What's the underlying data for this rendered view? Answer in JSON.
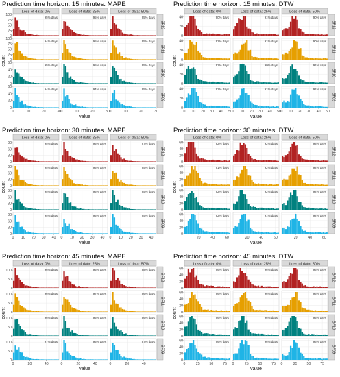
{
  "colors": {
    "SF12": "#B22222",
    "SF11": "#E69F00",
    "SF10": "#00817F",
    "SF09": "#1FB4E6",
    "strip_bg": "#d9d9d9",
    "panel_bg": "#ffffff",
    "grid": "#e6e6e6"
  },
  "row_labels": [
    "SF12",
    "SF11",
    "SF10",
    "SF09"
  ],
  "col_labels": [
    "Loss of data: 0%",
    "Loss of data: 25%",
    "Loss of data: 50%"
  ],
  "axis_titles": {
    "y": "count",
    "x": "value"
  },
  "chart_data": [
    {
      "type": "bar",
      "title": "Prediction time horizon: 15 minutes. MAPE",
      "xlim": [
        0,
        30
      ],
      "xticks": [
        0,
        10,
        20,
        30
      ],
      "ylim_per_row": [
        [
          0,
          100
        ],
        [
          0,
          100
        ],
        [
          0,
          60
        ],
        [
          0,
          60
        ]
      ],
      "yticks_per_row": [
        [
          0,
          25,
          50,
          75,
          100
        ],
        [
          0,
          25,
          50,
          75,
          100
        ],
        [
          0,
          20,
          40,
          60
        ],
        [
          0,
          20,
          40,
          60
        ]
      ],
      "shape": "decay",
      "annotations": [
        [
          "95% days",
          "95% days",
          "95% days"
        ],
        [
          "94% days",
          "95% days",
          "95% days"
        ],
        [
          "95% days",
          "95% days",
          "95% days"
        ],
        [
          "94% days",
          "94% days",
          "95% days"
        ]
      ]
    },
    {
      "type": "bar",
      "title": "Prediction time horizon: 15 minutes. DTW",
      "xlim": [
        0,
        50
      ],
      "xticks": [
        0,
        10,
        20,
        30,
        40,
        50
      ],
      "ylim_per_row": [
        [
          0,
          45
        ],
        [
          0,
          45
        ],
        [
          0,
          45
        ],
        [
          0,
          45
        ]
      ],
      "yticks_per_row": [
        [
          0,
          20,
          40
        ],
        [
          0,
          20,
          40
        ],
        [
          0,
          20,
          40
        ],
        [
          0,
          20,
          40
        ]
      ],
      "shape": "peak",
      "annotations": [
        [
          "90% days",
          "91% days",
          "90% days"
        ],
        [
          "92% days",
          "91% days",
          "90% days"
        ],
        [
          "92% days",
          "90% days",
          "91% days"
        ],
        [
          "92% days",
          "91% days",
          "91% days"
        ]
      ]
    },
    {
      "type": "bar",
      "title": "Prediction time horizon: 30 minutes. MAPE",
      "xlim": [
        0,
        45
      ],
      "xticks": [
        0,
        10,
        20,
        30,
        40
      ],
      "ylim_per_row": [
        [
          0,
          100
        ],
        [
          0,
          100
        ],
        [
          0,
          100
        ],
        [
          0,
          100
        ]
      ],
      "yticks_per_row": [
        [
          0,
          30,
          60,
          90
        ],
        [
          0,
          30,
          60,
          90
        ],
        [
          0,
          30,
          60,
          90
        ],
        [
          0,
          30,
          60,
          90
        ]
      ],
      "shape": "decay",
      "annotations": [
        [
          "95% days",
          "95% days",
          "97% days"
        ],
        [
          "95% days",
          "95% days",
          "95% days"
        ],
        [
          "95% days",
          "95% days",
          "95% days"
        ],
        [
          "95% days",
          "95% days",
          "95% days"
        ]
      ]
    },
    {
      "type": "bar",
      "title": "Prediction time horizon: 30 minutes. DTW",
      "xlim": [
        0,
        65
      ],
      "xticks": [
        20,
        40,
        60
      ],
      "ylim_per_row": [
        [
          0,
          65
        ],
        [
          0,
          65
        ],
        [
          0,
          65
        ],
        [
          0,
          65
        ]
      ],
      "yticks_per_row": [
        [
          0,
          20,
          40,
          60
        ],
        [
          0,
          20,
          40,
          60
        ],
        [
          0,
          20,
          40,
          60
        ],
        [
          0,
          20,
          40,
          60
        ]
      ],
      "shape": "peak",
      "annotations": [
        [
          "92% days",
          "92% days",
          "93% days"
        ],
        [
          "91% days",
          "92% days",
          "92% days"
        ],
        [
          "92% days",
          "92% days",
          "92% days"
        ],
        [
          "92% days",
          "91% days",
          "92% days"
        ]
      ]
    },
    {
      "type": "bar",
      "title": "Prediction time horizon: 45 minutes. MAPE",
      "xlim": [
        0,
        55
      ],
      "xticks": [
        0,
        20,
        40
      ],
      "ylim_per_row": [
        [
          0,
          120
        ],
        [
          0,
          120
        ],
        [
          0,
          120
        ],
        [
          0,
          120
        ]
      ],
      "yticks_per_row": [
        [
          0,
          50,
          100
        ],
        [
          0,
          50,
          100
        ],
        [
          0,
          50,
          100
        ],
        [
          0,
          50,
          100
        ]
      ],
      "shape": "decay",
      "annotations": [
        [
          "96% days",
          "96% days",
          "98% days"
        ],
        [
          "96% days",
          "97% days",
          "96% days"
        ],
        [
          "96% days",
          "96% days",
          "96% days"
        ],
        [
          "97% days",
          "96% days",
          "97% days"
        ]
      ]
    },
    {
      "type": "bar",
      "title": "Prediction time horizon: 45 minutes. DTW",
      "xlim": [
        0,
        85
      ],
      "xticks": [
        0,
        25,
        50,
        75
      ],
      "ylim_per_row": [
        [
          0,
          65
        ],
        [
          0,
          65
        ],
        [
          0,
          65
        ],
        [
          0,
          65
        ]
      ],
      "yticks_per_row": [
        [
          0,
          20,
          40,
          60
        ],
        [
          0,
          20,
          40,
          60
        ],
        [
          0,
          20,
          40,
          60
        ],
        [
          0,
          20,
          40,
          60
        ]
      ],
      "shape": "peak",
      "annotations": [
        [
          "96% days",
          "96% days",
          "96% days"
        ],
        [
          "96% days",
          "96% days",
          "96% days"
        ],
        [
          "96% days",
          "96% days",
          "95% days"
        ],
        [
          "96% days",
          "96% days",
          "96% days"
        ]
      ]
    }
  ]
}
